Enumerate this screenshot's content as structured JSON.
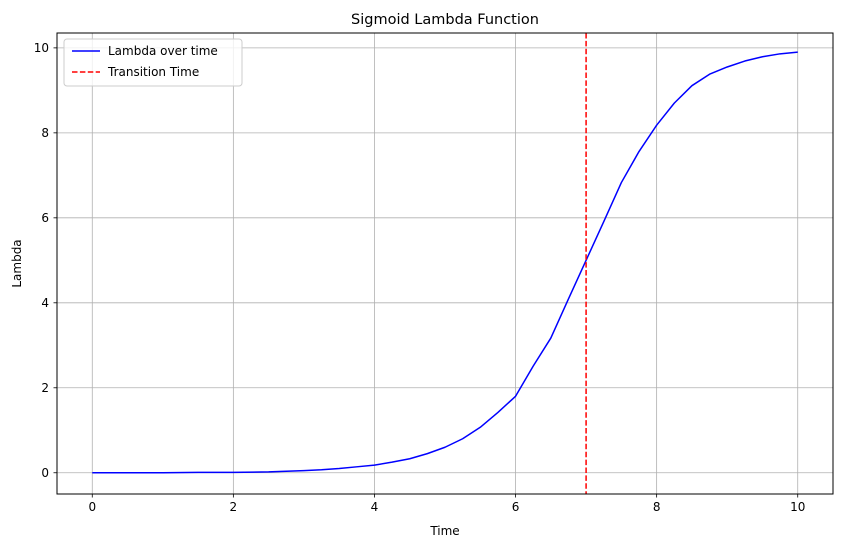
{
  "chart_data": {
    "type": "line",
    "title": "Sigmoid Lambda Function",
    "xlabel": "Time",
    "ylabel": "Lambda",
    "xlim": [
      -0.5,
      10.5
    ],
    "ylim": [
      -0.5,
      10.35
    ],
    "xticks": [
      0,
      2,
      4,
      6,
      8,
      10
    ],
    "yticks": [
      0,
      2,
      4,
      6,
      8,
      10
    ],
    "grid": true,
    "legend_position": "top-left",
    "series": [
      {
        "name": "Lambda over time",
        "color": "#0000ff",
        "style": "solid",
        "x": [
          0,
          0.5,
          1,
          1.5,
          2,
          2.5,
          3,
          3.25,
          3.5,
          3.75,
          4,
          4.25,
          4.5,
          4.75,
          5,
          5.25,
          5.5,
          5.75,
          6,
          6.25,
          6.5,
          6.75,
          7,
          7.25,
          7.5,
          7.75,
          8,
          8.25,
          8.5,
          8.75,
          9,
          9.25,
          9.5,
          9.75,
          10
        ],
        "y": [
          0.0,
          0.0,
          0.0,
          0.01,
          0.01,
          0.02,
          0.05,
          0.07,
          0.1,
          0.14,
          0.18,
          0.25,
          0.33,
          0.45,
          0.6,
          0.8,
          1.07,
          1.42,
          1.8,
          2.51,
          3.17,
          4.09,
          5.0,
          5.91,
          6.83,
          7.56,
          8.18,
          8.7,
          9.11,
          9.38,
          9.55,
          9.69,
          9.79,
          9.86,
          9.9
        ]
      },
      {
        "name": "Transition Time",
        "color": "#ff0000",
        "style": "dashed",
        "vline_x": 7
      }
    ]
  }
}
